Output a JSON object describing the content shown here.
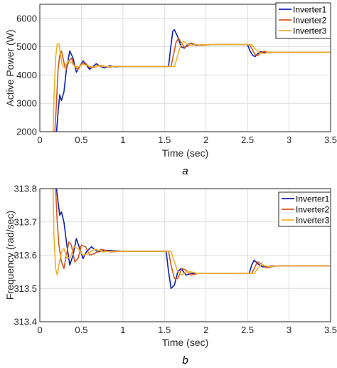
{
  "colors": {
    "inverter1": "#0b1fb4",
    "inverter2": "#d9541c",
    "inverter3": "#eeb12a"
  },
  "chart_data": [
    {
      "type": "line",
      "caption": "a",
      "xlabel": "Time (sec)",
      "ylabel": "Active Power (W)",
      "xlim": [
        0,
        3.5
      ],
      "ylim": [
        2000,
        6500
      ],
      "xticks": [
        "0",
        "0.5",
        "1",
        "1.5",
        "2",
        "2.5",
        "3",
        "3.5"
      ],
      "xtick_values": [
        0,
        0.5,
        1,
        1.5,
        2,
        2.5,
        3,
        3.5
      ],
      "yticks": [
        "2000",
        "3000",
        "4000",
        "5000",
        "6000"
      ],
      "ytick_values": [
        2000,
        3000,
        4000,
        5000,
        6000
      ],
      "grid": true,
      "legend_position": "top-right",
      "series": [
        {
          "name": "Inverter1",
          "color": "#0b1fb4",
          "points": [
            [
              0.2,
              1950
            ],
            [
              0.22,
              2700
            ],
            [
              0.24,
              3300
            ],
            [
              0.26,
              3100
            ],
            [
              0.29,
              3400
            ],
            [
              0.32,
              4200
            ],
            [
              0.36,
              4850
            ],
            [
              0.4,
              4600
            ],
            [
              0.44,
              4100
            ],
            [
              0.48,
              4300
            ],
            [
              0.52,
              4500
            ],
            [
              0.56,
              4350
            ],
            [
              0.6,
              4200
            ],
            [
              0.64,
              4300
            ],
            [
              0.68,
              4400
            ],
            [
              0.72,
              4320
            ],
            [
              0.78,
              4250
            ],
            [
              0.84,
              4330
            ],
            [
              0.9,
              4290
            ],
            [
              1.0,
              4300
            ],
            [
              1.3,
              4300
            ],
            [
              1.55,
              4300
            ],
            [
              1.57,
              4850
            ],
            [
              1.6,
              5550
            ],
            [
              1.62,
              5600
            ],
            [
              1.66,
              5350
            ],
            [
              1.7,
              5000
            ],
            [
              1.74,
              4950
            ],
            [
              1.78,
              5080
            ],
            [
              1.82,
              5120
            ],
            [
              1.88,
              5050
            ],
            [
              1.95,
              5070
            ],
            [
              2.1,
              5080
            ],
            [
              2.5,
              5080
            ],
            [
              2.53,
              4850
            ],
            [
              2.56,
              4700
            ],
            [
              2.59,
              4650
            ],
            [
              2.62,
              4750
            ],
            [
              2.66,
              4830
            ],
            [
              2.72,
              4790
            ],
            [
              2.8,
              4800
            ],
            [
              3.5,
              4800
            ]
          ]
        },
        {
          "name": "Inverter2",
          "color": "#d9541c",
          "points": [
            [
              0.18,
              1950
            ],
            [
              0.2,
              3000
            ],
            [
              0.22,
              4200
            ],
            [
              0.24,
              4700
            ],
            [
              0.26,
              4850
            ],
            [
              0.28,
              4600
            ],
            [
              0.3,
              4300
            ],
            [
              0.32,
              4200
            ],
            [
              0.35,
              4500
            ],
            [
              0.38,
              4600
            ],
            [
              0.42,
              4300
            ],
            [
              0.46,
              4200
            ],
            [
              0.5,
              4380
            ],
            [
              0.55,
              4420
            ],
            [
              0.6,
              4270
            ],
            [
              0.65,
              4260
            ],
            [
              0.7,
              4350
            ],
            [
              0.76,
              4320
            ],
            [
              0.84,
              4280
            ],
            [
              0.92,
              4310
            ],
            [
              1.0,
              4300
            ],
            [
              1.58,
              4300
            ],
            [
              1.6,
              4600
            ],
            [
              1.64,
              5150
            ],
            [
              1.67,
              5300
            ],
            [
              1.7,
              5150
            ],
            [
              1.74,
              4980
            ],
            [
              1.78,
              5020
            ],
            [
              1.82,
              5130
            ],
            [
              1.88,
              5070
            ],
            [
              1.95,
              5050
            ],
            [
              2.1,
              5080
            ],
            [
              2.52,
              5080
            ],
            [
              2.55,
              4950
            ],
            [
              2.59,
              4720
            ],
            [
              2.62,
              4680
            ],
            [
              2.66,
              4800
            ],
            [
              2.7,
              4840
            ],
            [
              2.76,
              4790
            ],
            [
              2.85,
              4800
            ],
            [
              3.5,
              4800
            ]
          ]
        },
        {
          "name": "Inverter3",
          "color": "#eeb12a",
          "points": [
            [
              0.16,
              1950
            ],
            [
              0.17,
              3200
            ],
            [
              0.19,
              4600
            ],
            [
              0.21,
              5100
            ],
            [
              0.23,
              5100
            ],
            [
              0.25,
              4700
            ],
            [
              0.27,
              4350
            ],
            [
              0.3,
              4250
            ],
            [
              0.34,
              4500
            ],
            [
              0.38,
              4450
            ],
            [
              0.42,
              4300
            ],
            [
              0.46,
              4290
            ],
            [
              0.52,
              4380
            ],
            [
              0.58,
              4330
            ],
            [
              0.64,
              4280
            ],
            [
              0.7,
              4320
            ],
            [
              0.8,
              4300
            ],
            [
              0.9,
              4300
            ],
            [
              1.62,
              4300
            ],
            [
              1.65,
              4600
            ],
            [
              1.69,
              5000
            ],
            [
              1.73,
              5200
            ],
            [
              1.77,
              5100
            ],
            [
              1.82,
              5040
            ],
            [
              1.88,
              5080
            ],
            [
              1.96,
              5070
            ],
            [
              2.1,
              5080
            ],
            [
              2.55,
              5080
            ],
            [
              2.6,
              4900
            ],
            [
              2.65,
              4770
            ],
            [
              2.7,
              4760
            ],
            [
              2.76,
              4810
            ],
            [
              2.85,
              4800
            ],
            [
              3.5,
              4800
            ]
          ]
        }
      ]
    },
    {
      "type": "line",
      "caption": "b",
      "xlabel": "Time (sec)",
      "ylabel": "Frequency (rad/sec)",
      "xlim": [
        0,
        3.5
      ],
      "ylim": [
        313.4,
        313.8
      ],
      "xticks": [
        "0",
        "0.5",
        "1",
        "1.5",
        "2",
        "2.5",
        "3",
        "3.5"
      ],
      "xtick_values": [
        0,
        0.5,
        1,
        1.5,
        2,
        2.5,
        3,
        3.5
      ],
      "yticks": [
        "313.4",
        "313.5",
        "313.6",
        "313.7",
        "313.8"
      ],
      "ytick_values": [
        313.4,
        313.5,
        313.6,
        313.7,
        313.8
      ],
      "grid": true,
      "legend_position": "top-right",
      "series": [
        {
          "name": "Inverter1",
          "color": "#0b1fb4",
          "points": [
            [
              0.2,
              313.8
            ],
            [
              0.22,
              313.76
            ],
            [
              0.24,
              313.72
            ],
            [
              0.26,
              313.73
            ],
            [
              0.29,
              313.7
            ],
            [
              0.32,
              313.64
            ],
            [
              0.36,
              313.57
            ],
            [
              0.4,
              313.6
            ],
            [
              0.44,
              313.65
            ],
            [
              0.48,
              313.62
            ],
            [
              0.52,
              313.59
            ],
            [
              0.56,
              313.61
            ],
            [
              0.62,
              313.625
            ],
            [
              0.7,
              313.61
            ],
            [
              0.8,
              313.615
            ],
            [
              1.0,
              313.612
            ],
            [
              1.52,
              313.612
            ],
            [
              1.55,
              313.55
            ],
            [
              1.58,
              313.5
            ],
            [
              1.62,
              313.51
            ],
            [
              1.66,
              313.55
            ],
            [
              1.7,
              313.56
            ],
            [
              1.76,
              313.54
            ],
            [
              1.82,
              313.545
            ],
            [
              2.0,
              313.545
            ],
            [
              2.52,
              313.545
            ],
            [
              2.55,
              313.57
            ],
            [
              2.58,
              313.585
            ],
            [
              2.62,
              313.575
            ],
            [
              2.68,
              313.565
            ],
            [
              2.8,
              313.568
            ],
            [
              3.5,
              313.568
            ]
          ]
        },
        {
          "name": "Inverter2",
          "color": "#d9541c",
          "points": [
            [
              0.19,
              313.8
            ],
            [
              0.21,
              313.7
            ],
            [
              0.23,
              313.63
            ],
            [
              0.26,
              313.58
            ],
            [
              0.29,
              313.56
            ],
            [
              0.32,
              313.6
            ],
            [
              0.35,
              313.64
            ],
            [
              0.38,
              313.63
            ],
            [
              0.42,
              313.58
            ],
            [
              0.46,
              313.59
            ],
            [
              0.5,
              313.63
            ],
            [
              0.55,
              313.625
            ],
            [
              0.6,
              313.6
            ],
            [
              0.66,
              313.605
            ],
            [
              0.74,
              313.618
            ],
            [
              0.85,
              313.61
            ],
            [
              1.0,
              313.612
            ],
            [
              1.55,
              313.612
            ],
            [
              1.58,
              313.57
            ],
            [
              1.62,
              313.53
            ],
            [
              1.66,
              313.53
            ],
            [
              1.71,
              313.56
            ],
            [
              1.76,
              313.555
            ],
            [
              1.82,
              313.54
            ],
            [
              1.9,
              313.545
            ],
            [
              2.55,
              313.545
            ],
            [
              2.58,
              313.56
            ],
            [
              2.62,
              313.58
            ],
            [
              2.66,
              313.575
            ],
            [
              2.72,
              313.562
            ],
            [
              2.85,
              313.568
            ],
            [
              3.5,
              313.568
            ]
          ]
        },
        {
          "name": "Inverter3",
          "color": "#eeb12a",
          "points": [
            [
              0.16,
              313.8
            ],
            [
              0.17,
              313.66
            ],
            [
              0.19,
              313.56
            ],
            [
              0.21,
              313.54
            ],
            [
              0.23,
              313.57
            ],
            [
              0.26,
              313.61
            ],
            [
              0.29,
              313.62
            ],
            [
              0.33,
              313.59
            ],
            [
              0.37,
              313.595
            ],
            [
              0.41,
              313.625
            ],
            [
              0.46,
              313.62
            ],
            [
              0.52,
              313.6
            ],
            [
              0.58,
              313.605
            ],
            [
              0.66,
              313.618
            ],
            [
              0.76,
              313.61
            ],
            [
              0.9,
              313.612
            ],
            [
              1.58,
              313.612
            ],
            [
              1.62,
              313.58
            ],
            [
              1.66,
              313.55
            ],
            [
              1.71,
              313.54
            ],
            [
              1.76,
              313.55
            ],
            [
              1.82,
              313.55
            ],
            [
              1.9,
              313.545
            ],
            [
              2.58,
              313.545
            ],
            [
              2.62,
              313.56
            ],
            [
              2.67,
              313.572
            ],
            [
              2.74,
              313.566
            ],
            [
              2.85,
              313.568
            ],
            [
              3.5,
              313.568
            ]
          ]
        }
      ]
    }
  ]
}
